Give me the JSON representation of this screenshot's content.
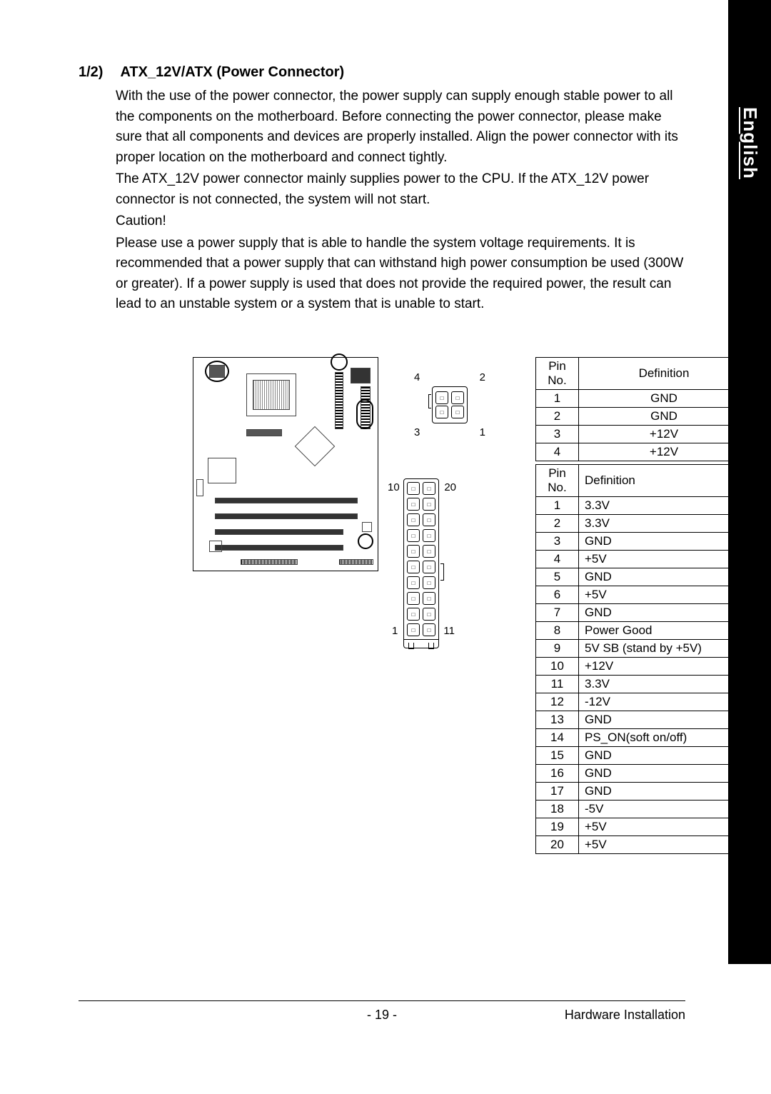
{
  "language_tab": "English",
  "section": {
    "number": "1/2)",
    "title": "ATX_12V/ATX (Power Connector)",
    "p1": "With the use of the power connector, the power supply can supply enough stable power to all the components on the motherboard. Before connecting the power connector, please make sure that all components and devices are properly installed.  Align the power connector with its proper location on the motherboard and connect tightly.",
    "p2": "The ATX_12V power connector mainly supplies power to the CPU. If the ATX_12V power connector is not connected, the system will not start.",
    "caution_label": "Caution!",
    "p3": "Please use a power supply that is able to handle the system voltage requirements.  It is recommended that a power supply that can withstand high power consumption be used (300W or greater).  If a power supply is used that does not provide the required power, the result can lead to an unstable system or a system that is unable to start."
  },
  "conn4": {
    "labels": {
      "tl": "4",
      "tr": "2",
      "bl": "3",
      "br": "1"
    },
    "headers": {
      "pin": "Pin No.",
      "def": "Definition"
    },
    "rows": [
      {
        "pin": "1",
        "def": "GND"
      },
      {
        "pin": "2",
        "def": "GND"
      },
      {
        "pin": "3",
        "def": "+12V"
      },
      {
        "pin": "4",
        "def": "+12V"
      }
    ]
  },
  "conn20": {
    "labels": {
      "tl": "10",
      "tr": "20",
      "bl": "1",
      "br": "11"
    },
    "headers": {
      "pin": "Pin No.",
      "def": "Definition"
    },
    "rows": [
      {
        "pin": "1",
        "def": "3.3V"
      },
      {
        "pin": "2",
        "def": "3.3V"
      },
      {
        "pin": "3",
        "def": "GND"
      },
      {
        "pin": "4",
        "def": "+5V"
      },
      {
        "pin": "5",
        "def": "GND"
      },
      {
        "pin": "6",
        "def": "+5V"
      },
      {
        "pin": "7",
        "def": "GND"
      },
      {
        "pin": "8",
        "def": "Power Good"
      },
      {
        "pin": "9",
        "def": "5V SB (stand by +5V)"
      },
      {
        "pin": "10",
        "def": "+12V"
      },
      {
        "pin": "11",
        "def": "3.3V"
      },
      {
        "pin": "12",
        "def": "-12V"
      },
      {
        "pin": "13",
        "def": "GND"
      },
      {
        "pin": "14",
        "def": "PS_ON(soft on/off)"
      },
      {
        "pin": "15",
        "def": "GND"
      },
      {
        "pin": "16",
        "def": "GND"
      },
      {
        "pin": "17",
        "def": "GND"
      },
      {
        "pin": "18",
        "def": "-5V"
      },
      {
        "pin": "19",
        "def": "+5V"
      },
      {
        "pin": "20",
        "def": "+5V"
      }
    ]
  },
  "footer": {
    "page": "- 19 -",
    "section": "Hardware Installation"
  },
  "colors": {
    "bg": "#ffffff",
    "fg": "#000000",
    "tab": "#000000",
    "tab_text": "#ffffff"
  }
}
